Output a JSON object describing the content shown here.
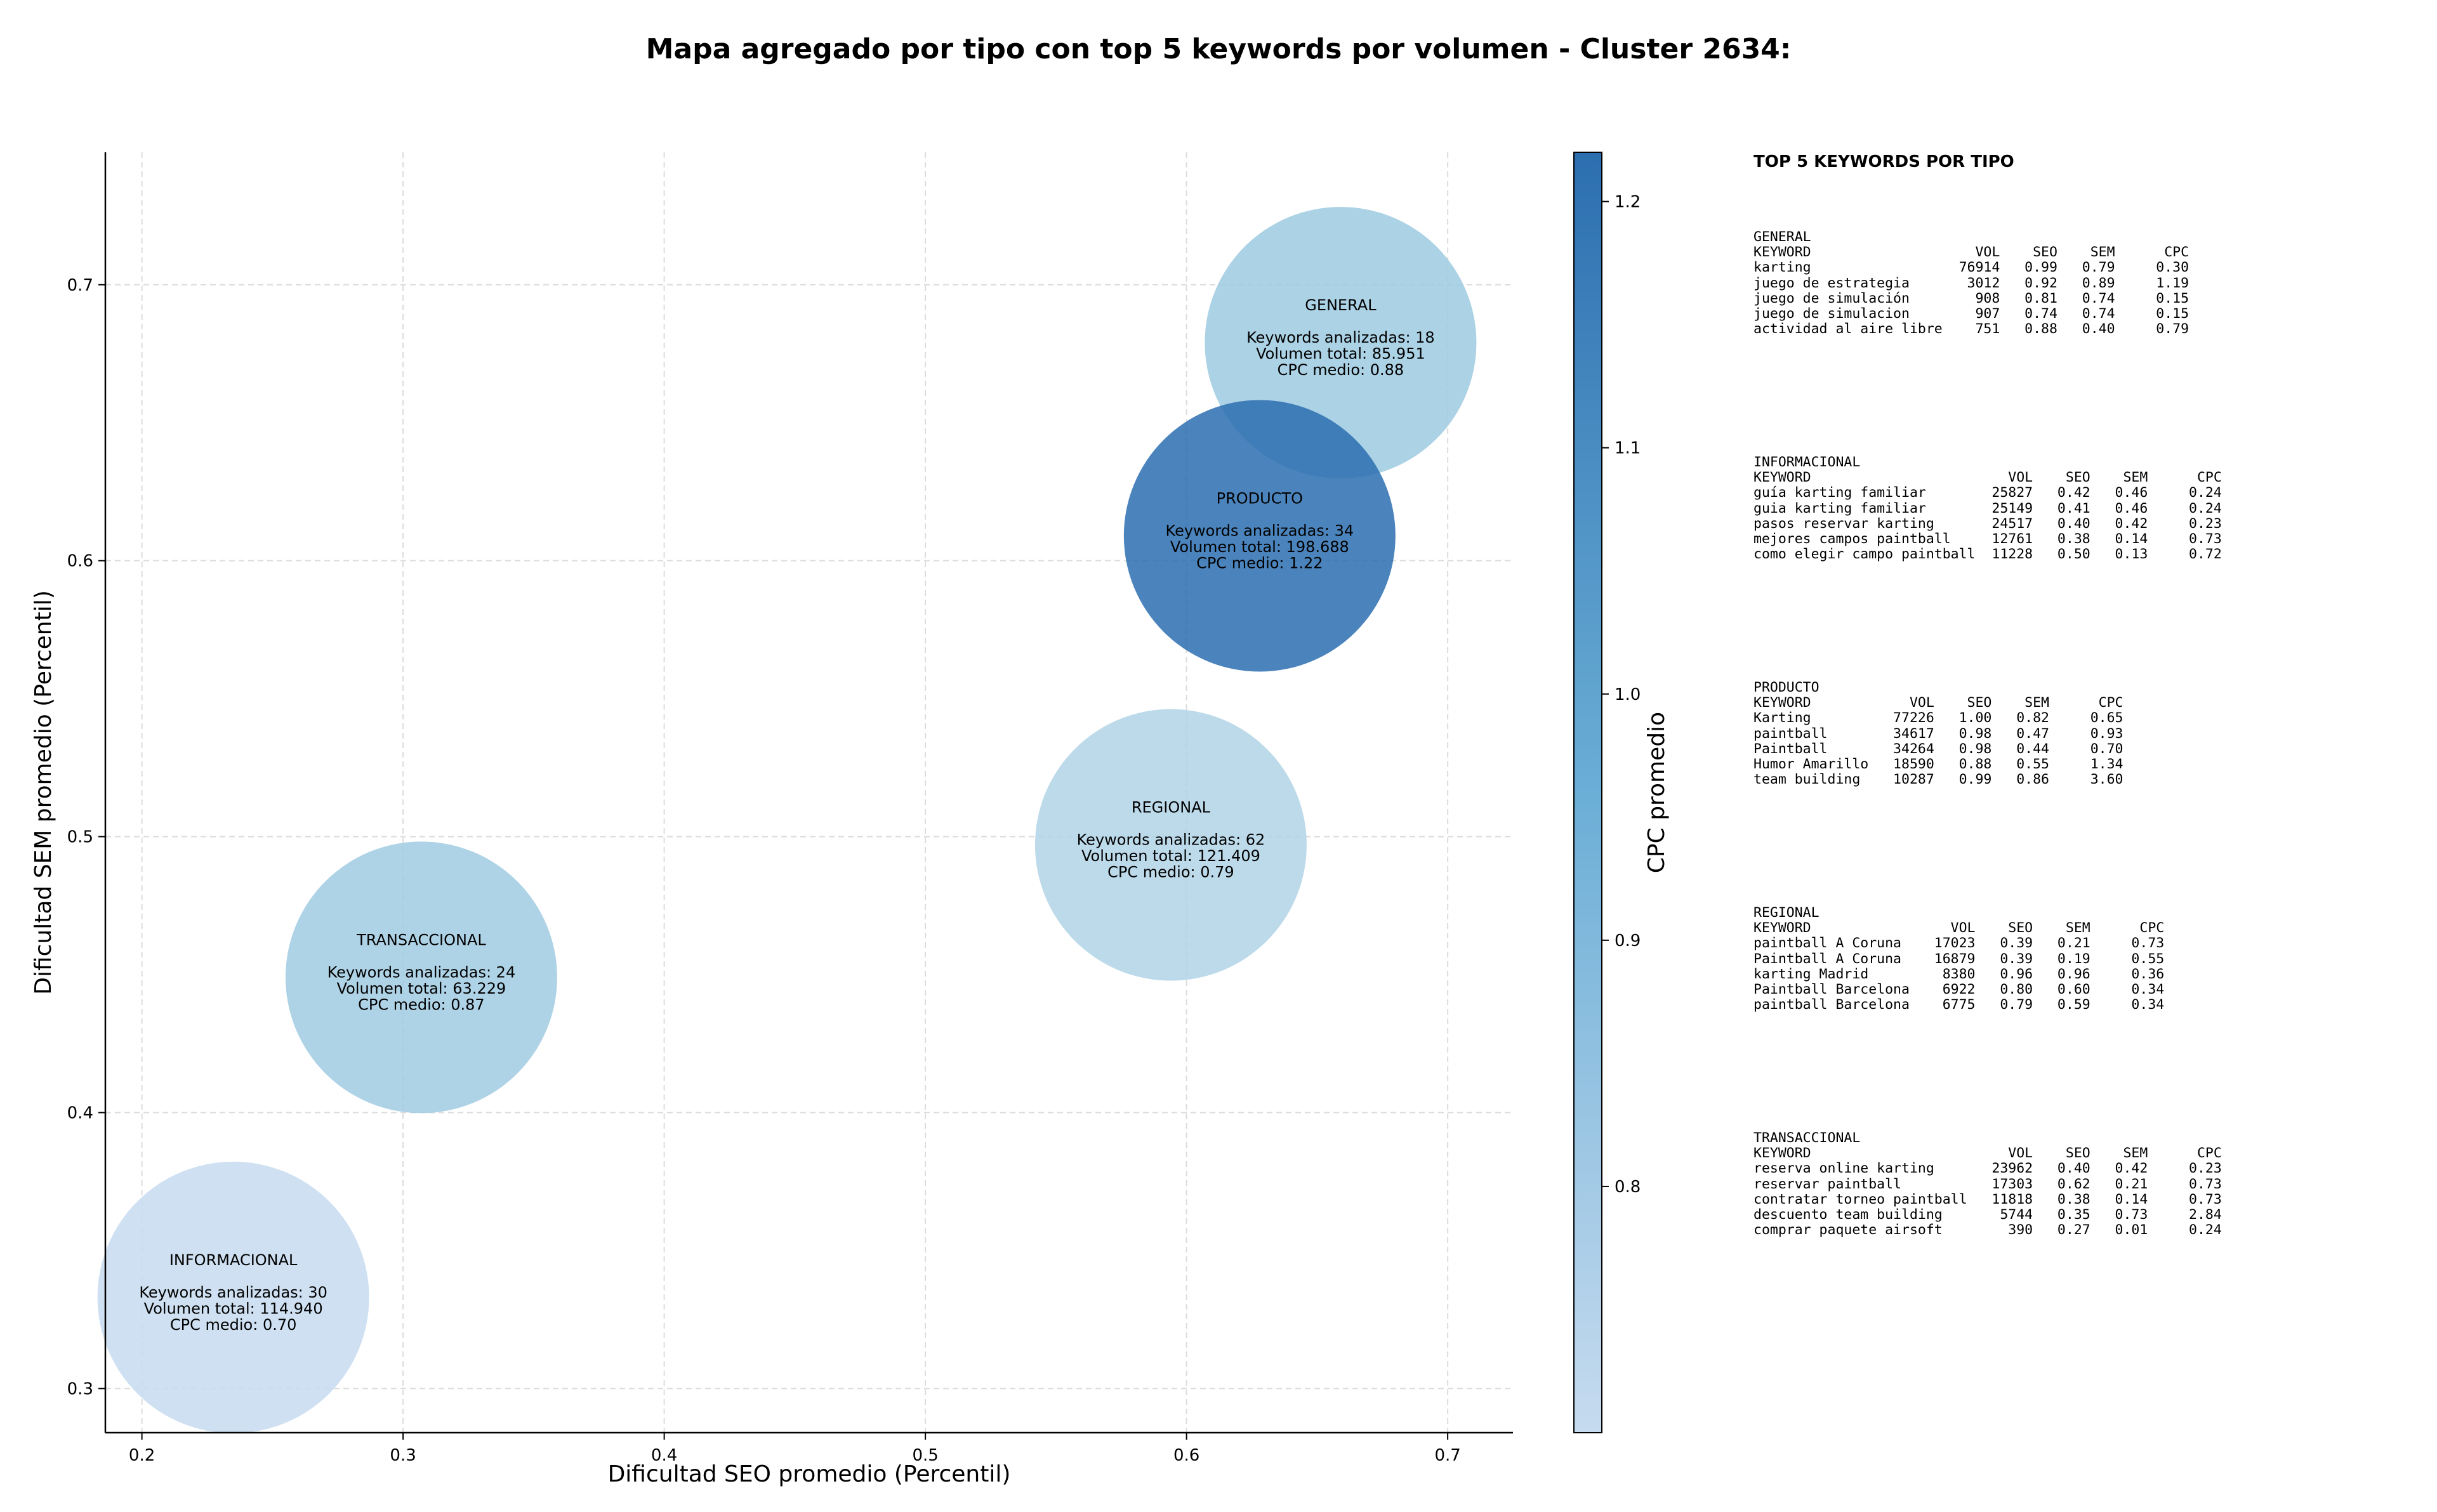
{
  "title": "Mapa agregado por tipo con top 5 keywords por volumen - Cluster 2634:",
  "chart_data": {
    "type": "scatter",
    "subtype": "bubble",
    "xlabel": "Dificultad SEO promedio (Percentil)",
    "ylabel": "Dificultad SEM promedio (Percentil)",
    "xlim": [
      0.186,
      0.725
    ],
    "ylim": [
      0.284,
      0.748
    ],
    "xticks": [
      0.2,
      0.3,
      0.4,
      0.5,
      0.6,
      0.7
    ],
    "yticks": [
      0.3,
      0.4,
      0.5,
      0.6,
      0.7
    ],
    "grid": true,
    "colorbar": {
      "label": "CPC promedio",
      "ticks": [
        0.8,
        0.9,
        1.0,
        1.1,
        1.2
      ],
      "range": [
        0.7,
        1.22
      ],
      "colormap": "Blues",
      "color_low": "#c6dbef",
      "color_high": "#08519c"
    },
    "points": [
      {
        "name": "GENERAL",
        "x": 0.659,
        "y": 0.679,
        "cpc": 0.88,
        "lines": [
          "Keywords analizadas: 18",
          "Volumen total: 85.951",
          "CPC medio: 0.88"
        ]
      },
      {
        "name": "PRODUCTO",
        "x": 0.628,
        "y": 0.609,
        "cpc": 1.22,
        "lines": [
          "Keywords analizadas: 34",
          "Volumen total: 198.688",
          "CPC medio: 1.22"
        ]
      },
      {
        "name": "REGIONAL",
        "x": 0.594,
        "y": 0.497,
        "cpc": 0.79,
        "lines": [
          "Keywords analizadas: 62",
          "Volumen total: 121.409",
          "CPC medio: 0.79"
        ]
      },
      {
        "name": "TRANSACCIONAL",
        "x": 0.307,
        "y": 0.449,
        "cpc": 0.87,
        "lines": [
          "Keywords analizadas: 24",
          "Volumen total: 63.229",
          "CPC medio: 0.87"
        ]
      },
      {
        "name": "INFORMACIONAL",
        "x": 0.235,
        "y": 0.333,
        "cpc": 0.7,
        "lines": [
          "Keywords analizadas: 30",
          "Volumen total: 114.940",
          "CPC medio: 0.70"
        ]
      }
    ]
  },
  "side_panel": {
    "heading": "TOP 5 KEYWORDS POR TIPO",
    "blocks": [
      {
        "lines": [
          "GENERAL",
          "KEYWORD                    VOL    SEO    SEM      CPC",
          "karting                  76914   0.99   0.79     0.30",
          "juego de estrategia       3012   0.92   0.89     1.19",
          "juego de simulación        908   0.81   0.74     0.15",
          "juego de simulacion        907   0.74   0.74     0.15",
          "actividad al aire libre    751   0.88   0.40     0.79"
        ]
      },
      {
        "lines": [
          "INFORMACIONAL",
          "KEYWORD                        VOL    SEO    SEM      CPC",
          "guía karting familiar        25827   0.42   0.46     0.24",
          "guia karting familiar        25149   0.41   0.46     0.24",
          "pasos reservar karting       24517   0.40   0.42     0.23",
          "mejores campos paintball     12761   0.38   0.14     0.73",
          "como elegir campo paintball  11228   0.50   0.13     0.72"
        ]
      },
      {
        "lines": [
          "PRODUCTO",
          "KEYWORD            VOL    SEO    SEM      CPC",
          "Karting          77226   1.00   0.82     0.65",
          "paintball        34617   0.98   0.47     0.93",
          "Paintball        34264   0.98   0.44     0.70",
          "Humor Amarillo   18590   0.88   0.55     1.34",
          "team building    10287   0.99   0.86     3.60"
        ]
      },
      {
        "lines": [
          "REGIONAL",
          "KEYWORD                 VOL    SEO    SEM      CPC",
          "paintball A Coruna    17023   0.39   0.21     0.73",
          "Paintball A Coruna    16879   0.39   0.19     0.55",
          "karting Madrid         8380   0.96   0.96     0.36",
          "Paintball Barcelona    6922   0.80   0.60     0.34",
          "paintball Barcelona    6775   0.79   0.59     0.34"
        ]
      },
      {
        "lines": [
          "TRANSACCIONAL",
          "KEYWORD                        VOL    SEO    SEM      CPC",
          "reserva online karting       23962   0.40   0.42     0.23",
          "reservar paintball           17303   0.62   0.21     0.73",
          "contratar torneo paintball   11818   0.38   0.14     0.73",
          "descuento team building       5744   0.35   0.73     2.84",
          "comprar paquete airsoft        390   0.27   0.01     0.24"
        ]
      }
    ]
  }
}
